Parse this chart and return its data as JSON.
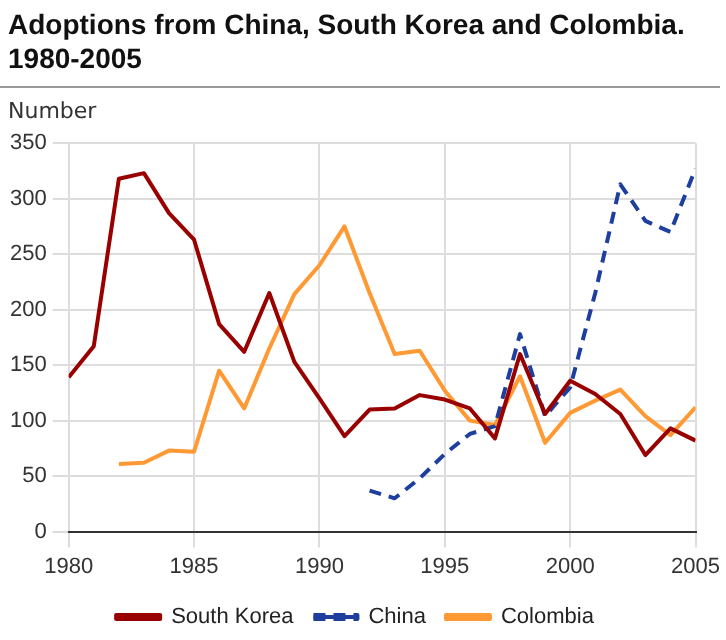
{
  "chart_data": {
    "type": "line",
    "title": "Adoptions from China, South Korea and Colombia. 1980-2005",
    "ylabel": "Number",
    "x": [
      1980,
      1981,
      1982,
      1983,
      1984,
      1985,
      1986,
      1987,
      1988,
      1989,
      1990,
      1991,
      1992,
      1993,
      1994,
      1995,
      1996,
      1997,
      1998,
      1999,
      2000,
      2001,
      2002,
      2003,
      2004,
      2005
    ],
    "series": [
      {
        "name": "South Korea",
        "color": "#990000",
        "line_style": "solid",
        "values": [
          139,
          167,
          318,
          323,
          287,
          263,
          187,
          162,
          215,
          153,
          120,
          86,
          110,
          111,
          123,
          119,
          111,
          84,
          160,
          106,
          136,
          124,
          106,
          69,
          93,
          82
        ]
      },
      {
        "name": "China",
        "color": "#1f3f9f",
        "line_style": "dashed",
        "values": [
          null,
          null,
          null,
          null,
          null,
          null,
          null,
          null,
          null,
          null,
          null,
          null,
          37,
          30,
          48,
          70,
          88,
          95,
          178,
          104,
          130,
          215,
          313,
          280,
          270,
          327
        ]
      },
      {
        "name": "Colombia",
        "color": "#ff9933",
        "line_style": "solid",
        "values": [
          null,
          null,
          61,
          62,
          73,
          72,
          145,
          111,
          165,
          214,
          240,
          275,
          215,
          160,
          163,
          127,
          100,
          96,
          140,
          80,
          107,
          118,
          128,
          104,
          87,
          112
        ]
      }
    ],
    "xlim": [
      1980,
      2005
    ],
    "xticks": [
      1980,
      1985,
      1990,
      1995,
      2000,
      2005
    ],
    "ylim": [
      0,
      350
    ],
    "yticks": [
      0,
      50,
      100,
      150,
      200,
      250,
      300,
      350
    ],
    "grid": true,
    "legend": "bottom",
    "marker": "none"
  }
}
